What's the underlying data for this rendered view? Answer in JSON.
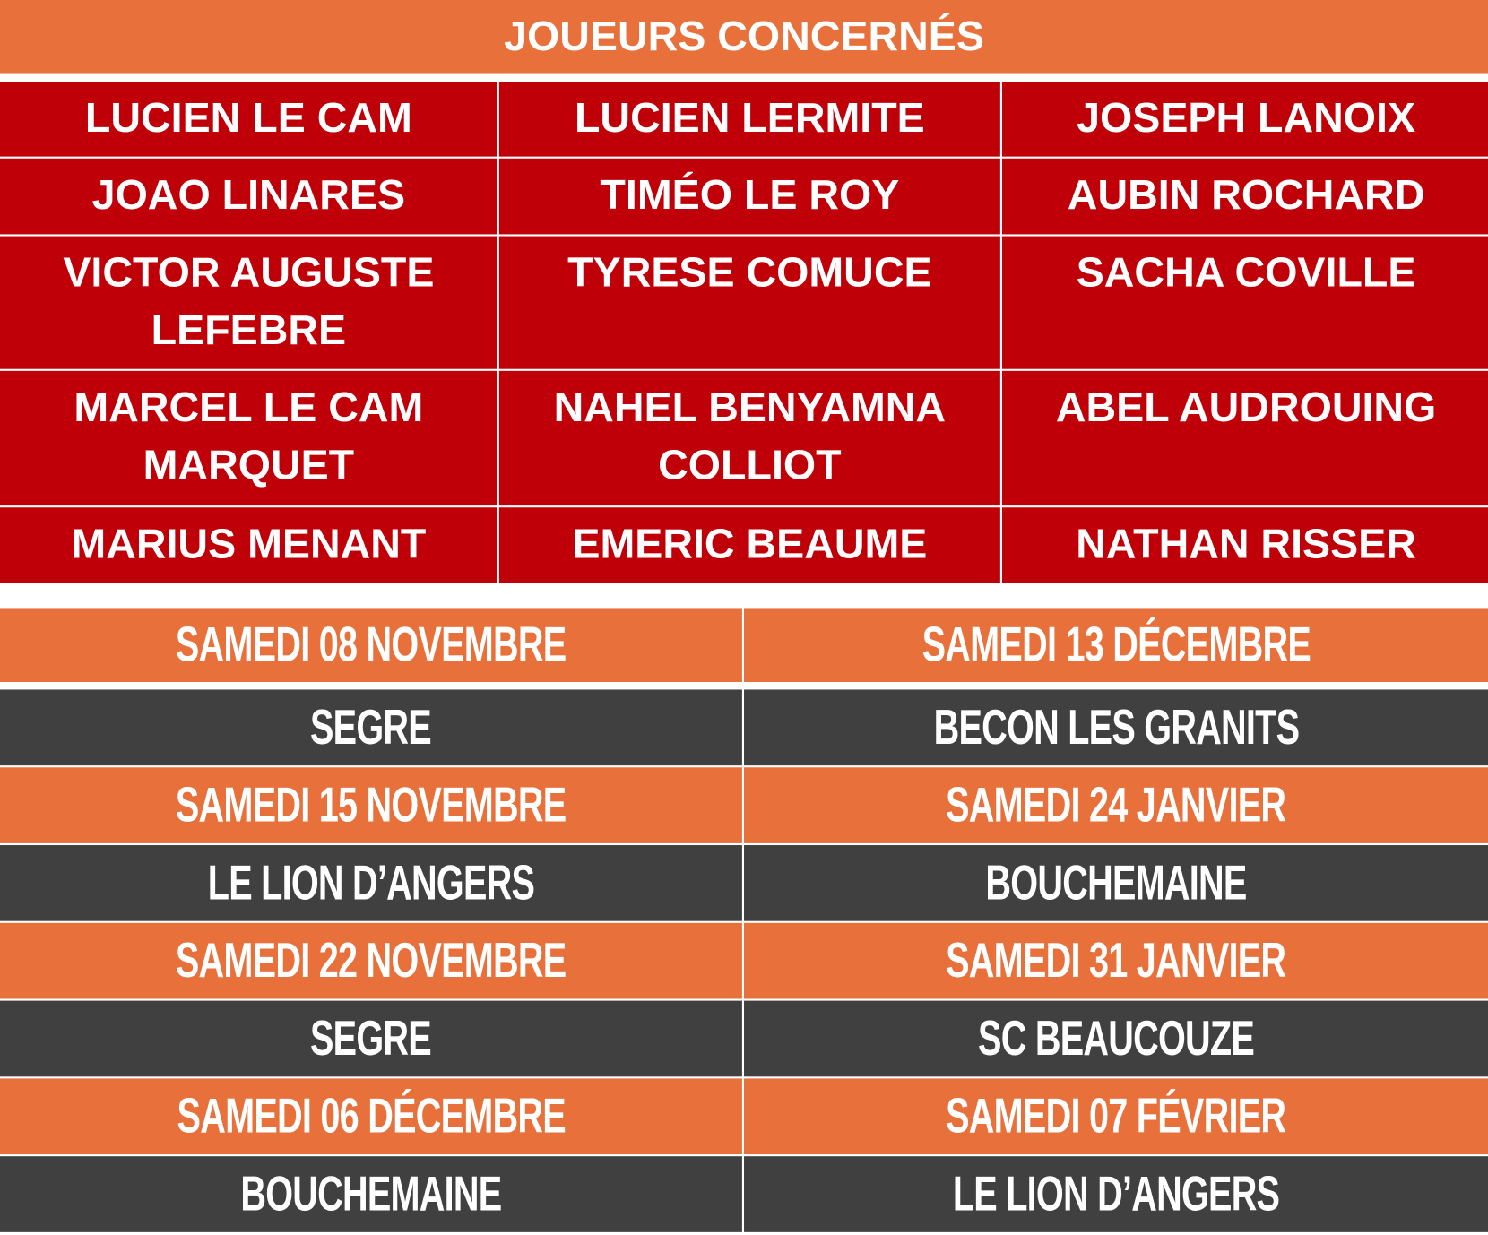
{
  "title": "JOUEURS CONCERNÉS",
  "colors": {
    "orange": "#e8703b",
    "red": "#c00008",
    "dark": "#404040"
  },
  "players": [
    "LUCIEN LE CAM",
    "LUCIEN LERMITE",
    "JOSEPH LANOIX",
    "JOAO LINARES",
    "TIMÉO LE ROY",
    "AUBIN ROCHARD",
    "VICTOR AUGUSTE LEFEBRE",
    "TYRESE COMUCE",
    "SACHA COVILLE",
    "MARCEL LE CAM MARQUET",
    "NAHEL BENYAMNA COLLIOT",
    "ABEL AUDROUING",
    "MARIUS MENANT",
    "EMERIC BEAUME",
    "NATHAN RISSER"
  ],
  "schedule": [
    {
      "left": {
        "date": "SAMEDI 08 NOVEMBRE",
        "team": "SEGRE"
      },
      "right": {
        "date": "SAMEDI 13 DÉCEMBRE",
        "team": "BECON LES GRANITS"
      }
    },
    {
      "left": {
        "date": "SAMEDI 15 NOVEMBRE",
        "team": "LE LION D’ANGERS"
      },
      "right": {
        "date": "SAMEDI 24 JANVIER",
        "team": "BOUCHEMAINE"
      }
    },
    {
      "left": {
        "date": "SAMEDI 22 NOVEMBRE",
        "team": "SEGRE"
      },
      "right": {
        "date": "SAMEDI 31 JANVIER",
        "team": "SC BEAUCOUZE"
      }
    },
    {
      "left": {
        "date": "SAMEDI 06 DÉCEMBRE",
        "team": "BOUCHEMAINE"
      },
      "right": {
        "date": "SAMEDI 07 FÉVRIER",
        "team": "LE LION D’ANGERS"
      }
    }
  ]
}
